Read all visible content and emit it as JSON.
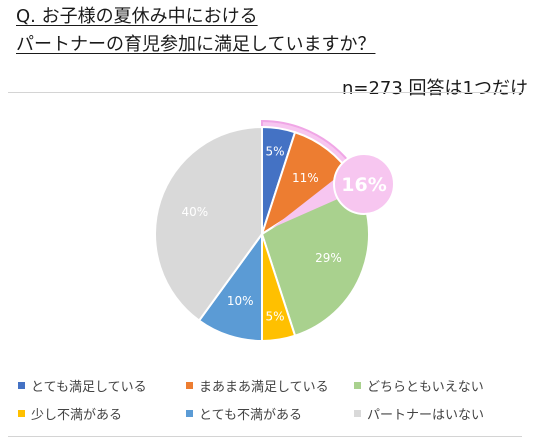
{
  "title_line1": "Q. お子様の夏休み中における",
  "title_line2": "パートナーの育児参加に満足していますか？",
  "note": "n=273  回答は1つだけ",
  "chart_data": {
    "type": "pie",
    "categories": [
      "とても満足している",
      "まあまあ満足している",
      "どちらともいえない",
      "少し不満がある",
      "とても不満がある",
      "パートナーはいない"
    ],
    "values": [
      5,
      11,
      29,
      5,
      10,
      40
    ],
    "value_labels": [
      "5%",
      "11%",
      "29%",
      "5%",
      "10%",
      "40%"
    ],
    "colors": [
      "#4472c4",
      "#ed7d31",
      "#a9d18e",
      "#ffc000",
      "#5b9bd5",
      "#d9d9d9"
    ],
    "highlight": {
      "label": "16%",
      "slices": [
        0,
        1
      ],
      "color": "#f7c6f0",
      "stroke": "#f0a6e6"
    },
    "legend_position": "bottom"
  }
}
